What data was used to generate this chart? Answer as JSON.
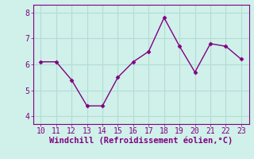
{
  "x": [
    10,
    11,
    12,
    13,
    14,
    15,
    16,
    17,
    18,
    19,
    20,
    21,
    22,
    23
  ],
  "y": [
    6.1,
    6.1,
    5.4,
    4.4,
    4.4,
    5.5,
    6.1,
    6.5,
    7.8,
    6.7,
    5.7,
    6.8,
    6.7,
    6.2
  ],
  "line_color": "#800080",
  "marker": "D",
  "marker_size": 2.5,
  "line_width": 1.0,
  "bg_color": "#d0f0ea",
  "grid_color": "#b0ddd5",
  "xlabel": "Windchill (Refroidissement éolien,°C)",
  "xlabel_color": "#800080",
  "xlabel_fontsize": 7.5,
  "tick_color": "#800080",
  "tick_fontsize": 7,
  "xlim": [
    9.5,
    23.5
  ],
  "ylim": [
    3.7,
    8.3
  ],
  "yticks": [
    4,
    5,
    6,
    7,
    8
  ],
  "xticks": [
    10,
    11,
    12,
    13,
    14,
    15,
    16,
    17,
    18,
    19,
    20,
    21,
    22,
    23
  ]
}
